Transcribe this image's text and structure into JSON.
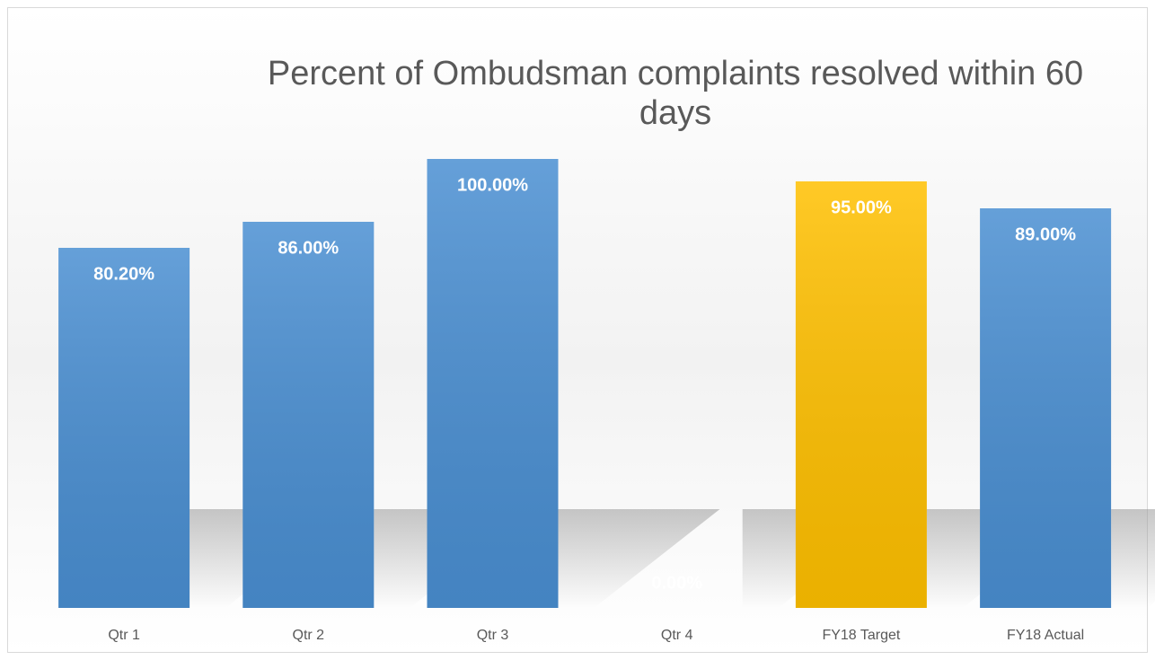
{
  "chart_data": {
    "type": "bar",
    "title": "Percent of Ombudsman complaints resolved within 60 days",
    "categories": [
      "Qtr 1",
      "Qtr 2",
      "Qtr 3",
      "Qtr 4",
      "FY18 Target",
      "FY18 Actual"
    ],
    "values": [
      80.2,
      86,
      100,
      0,
      95,
      89
    ],
    "value_labels": [
      "80.20%",
      "86.00%",
      "100.00%",
      "0.00%",
      "95.00%",
      "89.00%"
    ],
    "colors": [
      "#4a8fd2",
      "#4a8fd2",
      "#4a8fd2",
      "#4a8fd2",
      "#ffc000",
      "#4a8fd2"
    ]
  }
}
